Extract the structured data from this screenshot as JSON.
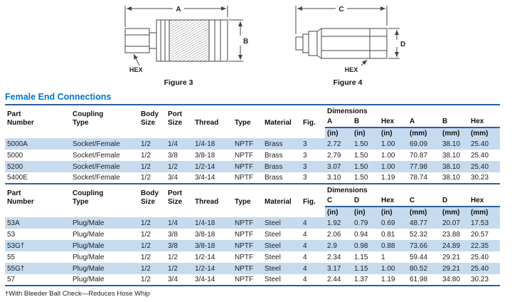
{
  "section_title": "Female End Connections",
  "footnote": "†With Bleeder Ball Check—Reduces Hose Whip",
  "colors": {
    "accent_blue": "#0077c8",
    "rule_blue": "#2a5f9e",
    "row_stripe_blue": "#c6dbee"
  },
  "figures": [
    {
      "caption": "Figure 3",
      "dim_top": "A",
      "dim_side": "B",
      "hex_label": "HEX"
    },
    {
      "caption": "Figure 4",
      "dim_top": "C",
      "dim_side": "D",
      "hex_label": "HEX"
    }
  ],
  "table": {
    "column_keys": [
      "part-number",
      "coupling-type",
      "body-size",
      "port-size",
      "thread",
      "type",
      "material",
      "fig",
      "dim-c1",
      "dim-c2",
      "dim-c3",
      "dim-c4",
      "dim-c5",
      "dim-c6"
    ],
    "sections": [
      {
        "header": {
          "cols": [
            "Part\nNumber",
            "Coupling\nType",
            "Body\nSize",
            "Port\nSize",
            "Thread",
            "Type",
            "Material",
            "Fig."
          ],
          "dimensions_label": "Dimensions",
          "dim_cols": [
            "A",
            "B",
            "Hex",
            "A",
            "B",
            "Hex"
          ]
        },
        "units": [
          "(in)",
          "(in)",
          "(in)",
          "(mm)",
          "(mm)",
          "(mm)"
        ],
        "rows": [
          [
            "5000A",
            "Socket/Female",
            "1/2",
            "1/4",
            "1/4-18",
            "NPTF",
            "Brass",
            "3",
            "2.72",
            "1.50",
            "1.00",
            "69.09",
            "38.10",
            "25.40"
          ],
          [
            "5000",
            "Socket/Female",
            "1/2",
            "3/8",
            "3/8-18",
            "NPTF",
            "Brass",
            "3",
            "2.79",
            "1.50",
            "1.00",
            "70.87",
            "38.10",
            "25.40"
          ],
          [
            "5200",
            "Socket/Female",
            "1/2",
            "1/2",
            "1/2-14",
            "NPTF",
            "Brass",
            "3",
            "3.07",
            "1.50",
            "1.00",
            "77.98",
            "38.10",
            "25.40"
          ],
          [
            "5400E",
            "Socket/Female",
            "1/2",
            "3/4",
            "3/4-14",
            "NPTF",
            "Brass",
            "3",
            "3.10",
            "1.50",
            "1.19",
            "78.74",
            "38.10",
            "30.23"
          ]
        ]
      },
      {
        "header": {
          "cols": [
            "Part\nNumber",
            "Coupling\nType",
            "Body\nSize",
            "Port\nSize",
            "Thread",
            "Type",
            "Material",
            "Fig."
          ],
          "dimensions_label": "Dimensions",
          "dim_cols": [
            "C",
            "D",
            "Hex",
            "C",
            "D",
            "Hex"
          ]
        },
        "units": [
          "(in)",
          "(in)",
          "(in)",
          "(mm)",
          "(mm)",
          "(mm)"
        ],
        "rows": [
          [
            "53A",
            "Plug/Male",
            "1/2",
            "1/4",
            "1/4-18",
            "NPTF",
            "Steel",
            "4",
            "1.92",
            "0.79",
            "0.69",
            "48.77",
            "20.07",
            "17.53"
          ],
          [
            "53",
            "Plug/Male",
            "1/2",
            "3/8",
            "3/8-18",
            "NPTF",
            "Steel",
            "4",
            "2.06",
            "0.94",
            "0.81",
            "52.32",
            "23.88",
            "20.57"
          ],
          [
            "53G†",
            "Plug/Male",
            "1/2",
            "3/8",
            "3/8-18",
            "NPTF",
            "Steel",
            "4",
            "2.9",
            "0.98",
            "0.88",
            "73.66",
            "24.89",
            "22.35"
          ],
          [
            "55",
            "Plug/Male",
            "1/2",
            "1/2",
            "1/2-14",
            "NPTF",
            "Steel",
            "4",
            "2.34",
            "1.15",
            "1",
            "59.44",
            "29.21",
            "25.40"
          ],
          [
            "55G†",
            "Plug/Male",
            "1/2",
            "1/2",
            "1/2-14",
            "NPTF",
            "Steel",
            "4",
            "3.17",
            "1.15",
            "1.00",
            "80.52",
            "29.21",
            "25.40"
          ],
          [
            "57",
            "Plug/Male",
            "1/2",
            "3/4",
            "3/4-14",
            "NPTF",
            "Steel",
            "4",
            "2.44",
            "1.37",
            "1.19",
            "61.98",
            "34.80",
            "30.23"
          ]
        ]
      }
    ]
  }
}
